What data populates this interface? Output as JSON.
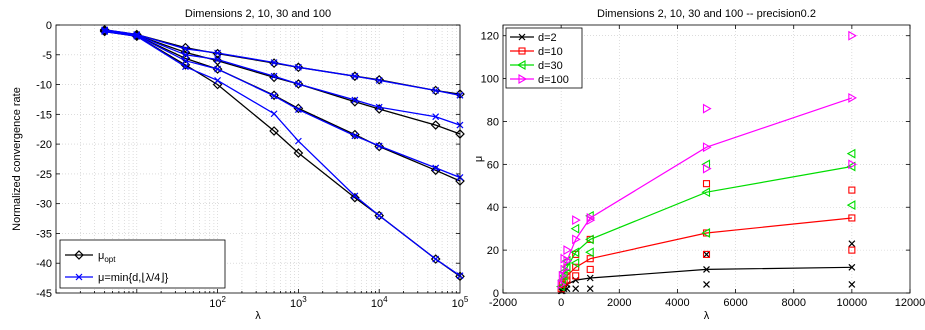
{
  "chart_data": [
    {
      "type": "line",
      "title": "Dimensions 2, 10, 30 and 100",
      "xlabel": "λ",
      "ylabel": "Normalized convergence rate",
      "xscale": "log",
      "xlim": [
        1,
        100000
      ],
      "ylim": [
        -45,
        0
      ],
      "yticks": [
        0,
        -5,
        -10,
        -15,
        -20,
        -25,
        -30,
        -35,
        -40,
        -45
      ],
      "xticks": [
        {
          "value": 100,
          "base": "10",
          "exp": "2"
        },
        {
          "value": 1000,
          "base": "10",
          "exp": "3"
        },
        {
          "value": 10000,
          "base": "10",
          "exp": "4"
        },
        {
          "value": 100000,
          "base": "10",
          "exp": "5"
        }
      ],
      "grid": true,
      "legend_placement": "bottom-left",
      "legend": [
        {
          "series": "opt",
          "label_main": "μ",
          "label_sub": "opt",
          "label_tail": ""
        },
        {
          "series": "min",
          "label_main": "μ=min{d,⌊λ/4⌋}",
          "label_sub": "",
          "label_tail": ""
        }
      ],
      "series": [
        {
          "group": "opt",
          "color": "#000000",
          "marker": "diamond",
          "x": [
            4,
            10,
            40,
            100,
            500,
            1000,
            5000,
            10000,
            50000,
            100000
          ],
          "y": [
            -0.8,
            -1.6,
            -3.8,
            -4.8,
            -6.4,
            -7.1,
            -8.6,
            -9.2,
            -11.0,
            -11.6
          ]
        },
        {
          "group": "opt",
          "color": "#000000",
          "marker": "diamond",
          "x": [
            4,
            10,
            40,
            100,
            500,
            1000,
            5000,
            10000,
            50000,
            100000
          ],
          "y": [
            -0.9,
            -1.7,
            -4.6,
            -6.0,
            -8.8,
            -9.9,
            -12.9,
            -14.1,
            -16.8,
            -18.3
          ]
        },
        {
          "group": "opt",
          "color": "#000000",
          "marker": "diamond",
          "x": [
            4,
            10,
            40,
            100,
            500,
            1000,
            5000,
            10000,
            50000,
            100000
          ],
          "y": [
            -1.0,
            -1.8,
            -5.6,
            -7.4,
            -11.8,
            -14.0,
            -18.4,
            -20.4,
            -24.4,
            -26.2
          ]
        },
        {
          "group": "opt",
          "color": "#000000",
          "marker": "diamond",
          "x": [
            4,
            10,
            40,
            100,
            500,
            1000,
            5000,
            10000,
            50000,
            100000
          ],
          "y": [
            -1.1,
            -1.9,
            -6.7,
            -10.0,
            -17.8,
            -21.5,
            -29.0,
            -32.0,
            -39.3,
            -42.2
          ]
        },
        {
          "group": "min",
          "color": "#0000ff",
          "marker": "x",
          "x": [
            4,
            10,
            40,
            100,
            500,
            1000,
            5000,
            10000,
            50000,
            100000
          ],
          "y": [
            -0.8,
            -1.6,
            -4.0,
            -4.7,
            -6.3,
            -7.1,
            -8.6,
            -9.3,
            -11.0,
            -11.8
          ]
        },
        {
          "group": "min",
          "color": "#0000ff",
          "marker": "x",
          "x": [
            4,
            10,
            40,
            100,
            500,
            1000,
            5000,
            10000,
            50000,
            100000
          ],
          "y": [
            -0.9,
            -1.7,
            -5.0,
            -5.8,
            -8.6,
            -9.9,
            -12.6,
            -13.8,
            -15.4,
            -16.8
          ]
        },
        {
          "group": "min",
          "color": "#0000ff",
          "marker": "x",
          "x": [
            4,
            10,
            40,
            100,
            500,
            1000,
            5000,
            10000,
            50000,
            100000
          ],
          "y": [
            -1.0,
            -1.8,
            -6.0,
            -7.4,
            -11.9,
            -14.2,
            -18.6,
            -20.3,
            -24.0,
            -25.6
          ]
        },
        {
          "group": "min",
          "color": "#0000ff",
          "marker": "x",
          "x": [
            4,
            10,
            40,
            100,
            500,
            1000,
            5000,
            10000,
            50000,
            100000
          ],
          "y": [
            -1.1,
            -1.9,
            -7.0,
            -9.3,
            -14.9,
            -19.5,
            -28.7,
            -32.0,
            -39.3,
            -42.1
          ]
        }
      ]
    },
    {
      "type": "line",
      "title": "Dimensions 2, 10, 30 and 100 -- precision0.2",
      "xlabel": "λ",
      "ylabel": "μ",
      "xlim": [
        -2000,
        12000
      ],
      "ylim": [
        0,
        125
      ],
      "xticks": [
        -2000,
        0,
        2000,
        4000,
        6000,
        8000,
        10000,
        12000
      ],
      "yticks": [
        0,
        20,
        40,
        60,
        80,
        100,
        120
      ],
      "grid": true,
      "legend_placement": "top-left",
      "series": [
        {
          "name": "d=2",
          "color": "#000000",
          "marker": "x",
          "x": [
            0,
            40,
            100,
            200,
            500,
            1000,
            5000,
            10000
          ],
          "y": [
            1,
            2,
            3,
            4,
            6,
            7,
            11,
            12
          ],
          "scatter": [
            [
              40,
              1
            ],
            [
              100,
              2
            ],
            [
              200,
              2
            ],
            [
              500,
              2
            ],
            [
              1000,
              2
            ],
            [
              5000,
              4
            ],
            [
              5000,
              18
            ],
            [
              10000,
              4
            ],
            [
              10000,
              23
            ]
          ]
        },
        {
          "name": "d=10",
          "color": "#ff0000",
          "marker": "square",
          "x": [
            0,
            40,
            100,
            200,
            500,
            1000,
            5000,
            10000
          ],
          "y": [
            2,
            4,
            6,
            8,
            12,
            16,
            28,
            35
          ],
          "scatter": [
            [
              100,
              5
            ],
            [
              200,
              6
            ],
            [
              200,
              12
            ],
            [
              500,
              8
            ],
            [
              500,
              18
            ],
            [
              1000,
              11
            ],
            [
              1000,
              25
            ],
            [
              5000,
              18
            ],
            [
              5000,
              51
            ],
            [
              10000,
              20
            ],
            [
              10000,
              48
            ]
          ]
        },
        {
          "name": "d=30",
          "color": "#00dd00",
          "marker": "triangle-left",
          "x": [
            0,
            40,
            100,
            200,
            500,
            1000,
            5000,
            10000
          ],
          "y": [
            3,
            6,
            8,
            12,
            19,
            25,
            47,
            59
          ],
          "scatter": [
            [
              100,
              10
            ],
            [
              200,
              15
            ],
            [
              500,
              14
            ],
            [
              500,
              30
            ],
            [
              1000,
              19
            ],
            [
              1000,
              36
            ],
            [
              5000,
              28
            ],
            [
              5000,
              60
            ],
            [
              10000,
              41
            ],
            [
              10000,
              65
            ]
          ]
        },
        {
          "name": "d=100",
          "color": "#ff00ff",
          "marker": "triangle-right",
          "x": [
            0,
            40,
            100,
            200,
            500,
            1000,
            5000,
            10000
          ],
          "y": [
            4,
            8,
            11,
            15,
            25,
            35,
            68,
            91
          ],
          "scatter": [
            [
              100,
              16
            ],
            [
              200,
              20
            ],
            [
              500,
              34
            ],
            [
              1000,
              34
            ],
            [
              5000,
              58
            ],
            [
              5000,
              86
            ],
            [
              10000,
              60
            ],
            [
              10000,
              120
            ]
          ]
        }
      ]
    }
  ]
}
